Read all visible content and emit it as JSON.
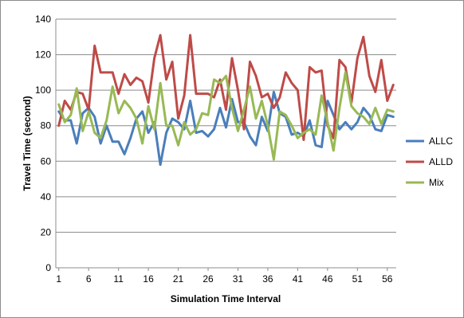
{
  "chart_data": {
    "type": "line",
    "title": "",
    "xlabel": "Simulation Time Interval",
    "ylabel": "Travel Time (second)",
    "ylim": [
      0,
      140
    ],
    "yticks": [
      0,
      20,
      40,
      60,
      80,
      100,
      120,
      140
    ],
    "xlim": [
      1,
      57
    ],
    "xtick_labels": [
      1,
      6,
      11,
      16,
      21,
      26,
      31,
      36,
      41,
      46,
      51,
      56
    ],
    "grid": "horizontal",
    "legend_position": "right",
    "colors": {
      "ALLC": "#4a7ebb",
      "ALLD": "#be4b48",
      "Mix": "#98b954"
    },
    "series": [
      {
        "name": "ALLC",
        "values": [
          88,
          83,
          83,
          70,
          87,
          90,
          85,
          70,
          80,
          71,
          71,
          64,
          73,
          84,
          88,
          76,
          82,
          58,
          76,
          84,
          82,
          78,
          94,
          76,
          77,
          74,
          78,
          90,
          79,
          95,
          82,
          82,
          74,
          69,
          85,
          77,
          99,
          87,
          85,
          75,
          76,
          74,
          83,
          69,
          68,
          94,
          86,
          78,
          82,
          78,
          82,
          90,
          86,
          78,
          77,
          86,
          85
        ]
      },
      {
        "name": "ALLD",
        "values": [
          80,
          94,
          89,
          99,
          98,
          89,
          125,
          110,
          110,
          110,
          98,
          109,
          103,
          107,
          105,
          93,
          118,
          131,
          106,
          116,
          84,
          97,
          131,
          98,
          98,
          98,
          96,
          106,
          89,
          118,
          100,
          78,
          116,
          108,
          96,
          98,
          90,
          96,
          110,
          104,
          100,
          72,
          113,
          110,
          111,
          80,
          73,
          117,
          113,
          93,
          118,
          130,
          108,
          99,
          117,
          94,
          103
        ]
      },
      {
        "name": "Mix",
        "values": [
          92,
          82,
          86,
          101,
          77,
          88,
          76,
          73,
          83,
          102,
          87,
          94,
          90,
          84,
          70,
          91,
          78,
          104,
          80,
          80,
          69,
          82,
          75,
          78,
          87,
          86,
          106,
          104,
          108,
          90,
          77,
          89,
          102,
          84,
          94,
          80,
          61,
          88,
          86,
          80,
          73,
          76,
          78,
          75,
          97,
          82,
          66,
          90,
          110,
          91,
          87,
          85,
          81,
          90,
          81,
          89,
          88
        ]
      }
    ]
  }
}
